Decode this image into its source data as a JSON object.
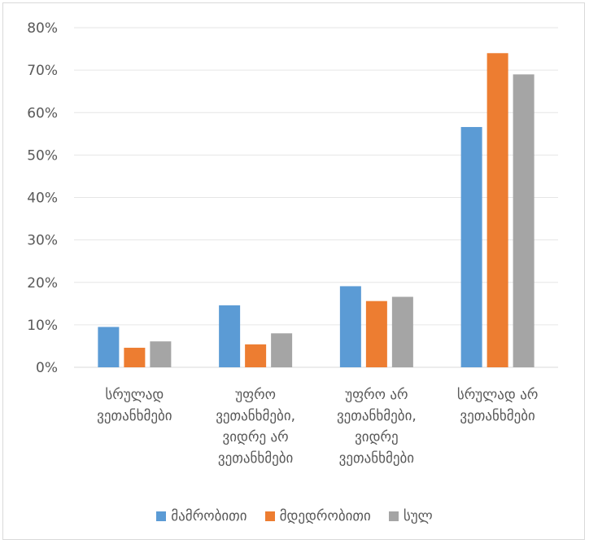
{
  "chart_data": {
    "type": "bar",
    "categories": [
      [
        "სრულად",
        "ვეთანხმები"
      ],
      [
        "უფრო",
        "ვეთანხმები,",
        "ვიდრე არ",
        "ვეთანხმები"
      ],
      [
        "უფრო არ",
        "ვეთანხმები,",
        "ვიდრე",
        "ვეთანხმები"
      ],
      [
        "სრულად არ",
        "ვეთანხმები"
      ]
    ],
    "series": [
      {
        "name": "მამრობითი",
        "color": "#5b9bd5",
        "values": [
          9.5,
          14.6,
          19.1,
          56.6
        ]
      },
      {
        "name": "მდედრობითი",
        "color": "#ed7d31",
        "values": [
          4.6,
          5.4,
          15.6,
          74.0
        ]
      },
      {
        "name": "სულ",
        "color": "#a5a5a5",
        "values": [
          6.1,
          8.0,
          16.6,
          69.0
        ]
      }
    ],
    "yticks": [
      "0%",
      "10%",
      "20%",
      "30%",
      "40%",
      "50%",
      "60%",
      "70%",
      "80%"
    ],
    "ylim": [
      0,
      80
    ],
    "grid": true,
    "legend_position": "bottom"
  }
}
